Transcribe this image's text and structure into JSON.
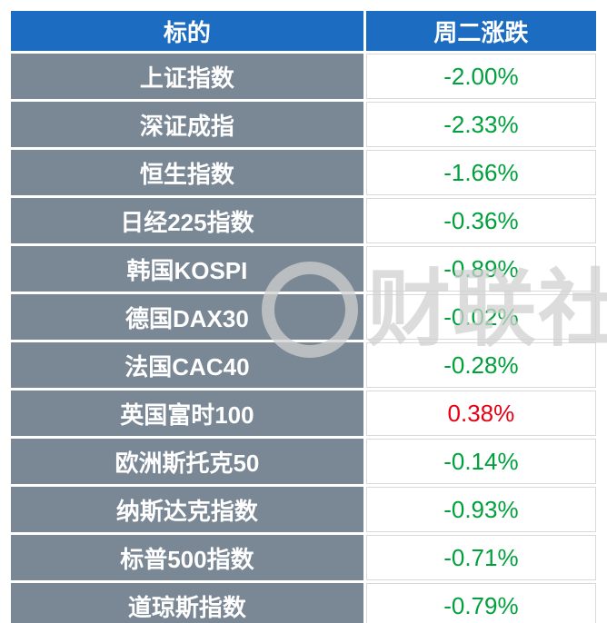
{
  "table": {
    "headers": {
      "target": "标的",
      "change": "周二涨跌"
    },
    "rows": [
      {
        "name": "上证指数",
        "change": "-2.00%",
        "dir": "down"
      },
      {
        "name": "深证成指",
        "change": "-2.33%",
        "dir": "down"
      },
      {
        "name": "恒生指数",
        "change": "-1.66%",
        "dir": "down"
      },
      {
        "name": "日经225指数",
        "change": "-0.36%",
        "dir": "down"
      },
      {
        "name": "韩国KOSPI",
        "change": "-0.89%",
        "dir": "down"
      },
      {
        "name": "德国DAX30",
        "change": "-0.02%",
        "dir": "down"
      },
      {
        "name": "法国CAC40",
        "change": "-0.28%",
        "dir": "down"
      },
      {
        "name": "英国富时100",
        "change": "0.38%",
        "dir": "up"
      },
      {
        "name": "欧洲斯托克50",
        "change": "-0.14%",
        "dir": "down"
      },
      {
        "name": "纳斯达克指数",
        "change": "-0.93%",
        "dir": "down"
      },
      {
        "name": "标普500指数",
        "change": "-0.71%",
        "dir": "down"
      },
      {
        "name": "道琼斯指数",
        "change": "-0.79%",
        "dir": "down"
      }
    ]
  },
  "watermark": {
    "text": "财联社"
  },
  "colors": {
    "header_bg": "#1c6dc1",
    "name_bg": "#7a8795",
    "down_green": "#00a03c",
    "up_red": "#e60012"
  },
  "chart_data": {
    "type": "table",
    "title": "周二涨跌",
    "columns": [
      "标的",
      "周二涨跌"
    ],
    "rows": [
      [
        "上证指数",
        "-2.00%"
      ],
      [
        "深证成指",
        "-2.33%"
      ],
      [
        "恒生指数",
        "-1.66%"
      ],
      [
        "日经225指数",
        "-0.36%"
      ],
      [
        "韩国KOSPI",
        "-0.89%"
      ],
      [
        "德国DAX30",
        "-0.02%"
      ],
      [
        "法国CAC40",
        "-0.28%"
      ],
      [
        "英国富时100",
        "0.38%"
      ],
      [
        "欧洲斯托克50",
        "-0.14%"
      ],
      [
        "纳斯达克指数",
        "-0.93%"
      ],
      [
        "标普500指数",
        "-0.71%"
      ],
      [
        "道琼斯指数",
        "-0.79%"
      ]
    ],
    "values_numeric_pct": [
      -2.0,
      -2.33,
      -1.66,
      -0.36,
      -0.89,
      -0.02,
      -0.28,
      0.38,
      -0.14,
      -0.93,
      -0.71,
      -0.79
    ]
  }
}
